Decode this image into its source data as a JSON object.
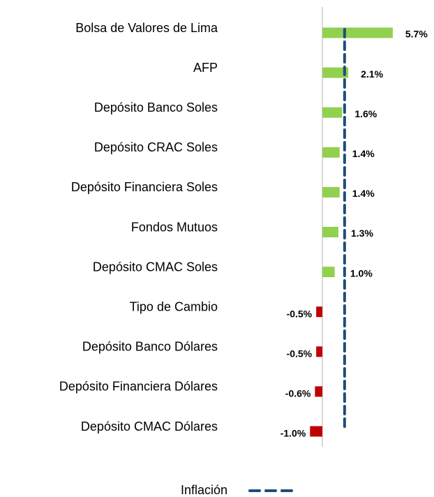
{
  "chart_data": {
    "type": "hbar",
    "categories": [
      "Bolsa de Valores de Lima",
      "AFP",
      "Depósito Banco Soles",
      "Depósito CRAC Soles",
      "Depósito Financiera Soles",
      "Fondos Mutuos",
      "Depósito CMAC Soles",
      "Tipo de Cambio",
      "Depósito Banco Dólares",
      "Depósito Financiera Dólares",
      "Depósito CMAC Dólares"
    ],
    "values": [
      5.7,
      2.1,
      1.6,
      1.4,
      1.4,
      1.3,
      1.0,
      -0.5,
      -0.5,
      -0.6,
      -1.0
    ],
    "value_labels": [
      "5.7%",
      "2.1%",
      "1.6%",
      "1.4%",
      "1.4%",
      "1.3%",
      "1.0%",
      "-0.5%",
      "-0.5%",
      "-0.6%",
      "-1.0%"
    ],
    "positive_color": "#92d050",
    "negative_color": "#c00000",
    "xlim": [
      -1,
      6
    ],
    "reference_lines": [
      {
        "name": "Inflación",
        "value": 1.8,
        "color": "#1f4e79",
        "style": "dashed"
      }
    ]
  }
}
